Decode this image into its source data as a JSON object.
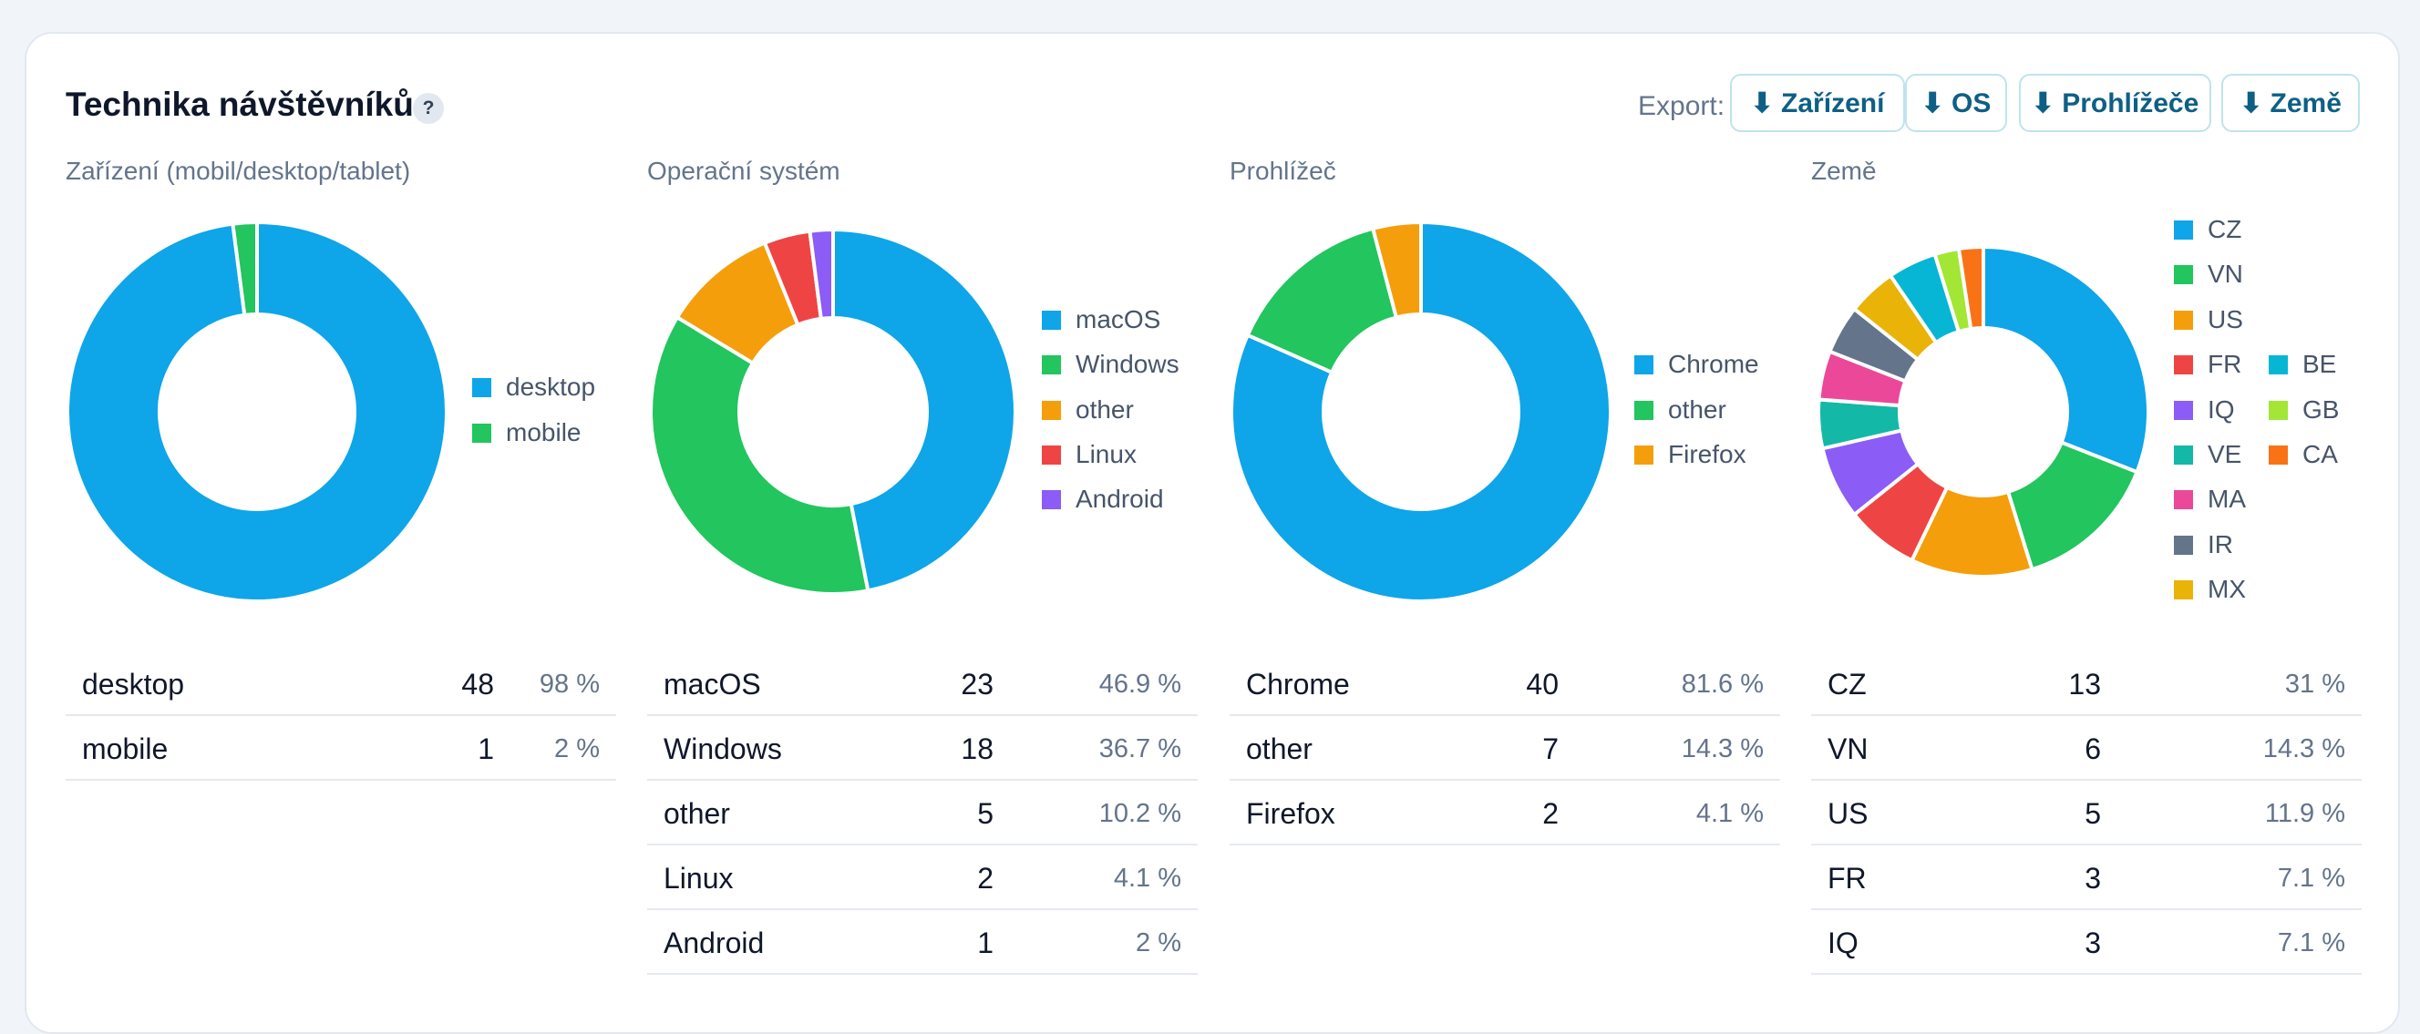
{
  "header": {
    "title": "Technika návštěvníků",
    "help": "?",
    "export_label": "Export:",
    "buttons": [
      "⬇ Zařízení",
      "⬇ OS",
      "⬇ Prohlížeče",
      "⬇ Země"
    ]
  },
  "chart_data": [
    {
      "type": "pie",
      "title": "Zařízení (mobil/desktop/tablet)",
      "labels": [
        "desktop",
        "mobile"
      ],
      "values": [
        48,
        1
      ],
      "percent_labels": [
        "98 %",
        "2 %"
      ],
      "colors": [
        "#0ea5e9",
        "#22c55e"
      ]
    },
    {
      "type": "pie",
      "title": "Operační systém",
      "labels": [
        "macOS",
        "Windows",
        "other",
        "Linux",
        "Android"
      ],
      "values": [
        23,
        18,
        5,
        2,
        1
      ],
      "percent_labels": [
        "46.9 %",
        "36.7 %",
        "10.2 %",
        "4.1 %",
        "2 %"
      ],
      "colors": [
        "#0ea5e9",
        "#22c55e",
        "#f59e0b",
        "#ef4444",
        "#8b5cf6"
      ]
    },
    {
      "type": "pie",
      "title": "Prohlížeč",
      "labels": [
        "Chrome",
        "other",
        "Firefox"
      ],
      "values": [
        40,
        7,
        2
      ],
      "percent_labels": [
        "81.6 %",
        "14.3 %",
        "4.1 %"
      ],
      "colors": [
        "#0ea5e9",
        "#22c55e",
        "#f59e0b"
      ]
    },
    {
      "type": "pie",
      "title": "Země",
      "labels": [
        "CZ",
        "VN",
        "US",
        "FR",
        "IQ",
        "VE",
        "MA",
        "IR",
        "MX",
        "BE",
        "GB",
        "CA"
      ],
      "values": [
        13,
        6,
        5,
        3,
        3,
        2,
        2,
        2,
        2,
        2,
        1,
        1
      ],
      "percent_labels": [
        "31 %",
        "14.3 %",
        "11.9 %",
        "7.1 %",
        "7.1 %"
      ],
      "table_rows": 5,
      "colors": [
        "#0ea5e9",
        "#22c55e",
        "#f59e0b",
        "#ef4444",
        "#8b5cf6",
        "#14b8a6",
        "#ec4899",
        "#64748b",
        "#eab308",
        "#06b6d4",
        "#a3e635",
        "#f97316"
      ]
    }
  ]
}
